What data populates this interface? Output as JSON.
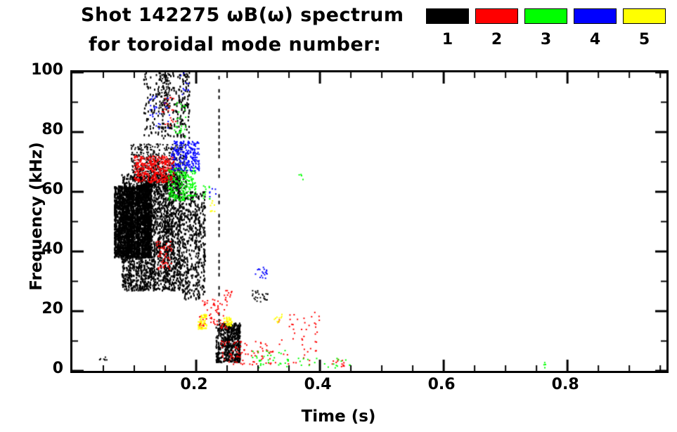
{
  "header": {
    "title_line1": "Shot 142275 ωB(ω) spectrum",
    "title_line2": "for toroidal mode number:"
  },
  "legend": {
    "swatch_colors": [
      "#000000",
      "#ff0000",
      "#00ff00",
      "#0000ff",
      "#ffff00"
    ],
    "mode_labels": [
      "1",
      "2",
      "3",
      "4",
      "5"
    ]
  },
  "chart_data": {
    "type": "scatter",
    "title": "Shot 142275 ωB(ω) spectrum for toroidal mode number",
    "xlabel": "Time (s)",
    "ylabel": "Frequency (kHz)",
    "xlim": [
      0,
      0.96
    ],
    "ylim": [
      0,
      100
    ],
    "x_major_ticks": [
      0.2,
      0.4,
      0.6,
      0.8
    ],
    "x_major_tick_labels": [
      "0.2",
      "0.4",
      "0.6",
      "0.8"
    ],
    "x_minor_step": 0.05,
    "y_major_ticks": [
      0,
      20,
      40,
      60,
      80,
      100
    ],
    "y_major_tick_labels": [
      "0",
      "20",
      "40",
      "60",
      "80",
      "100"
    ],
    "y_minor_step": 10,
    "grid": false,
    "legend_position": "top-right",
    "series": [
      {
        "name": "n=1",
        "color": "#000000",
        "clusters": [
          {
            "style": "columns",
            "t": [
              0.068,
              0.128
            ],
            "f": [
              38,
              62
            ],
            "n": 2600,
            "cols": 22,
            "size": 2
          },
          {
            "style": "columns",
            "t": [
              0.08,
              0.175
            ],
            "f": [
              27,
              66
            ],
            "n": 2100,
            "cols": 30,
            "size": 2
          },
          {
            "style": "speckle",
            "t": [
              0.095,
              0.185
            ],
            "f": [
              60,
              76
            ],
            "n": 650,
            "size": 2
          },
          {
            "style": "columns",
            "t": [
              0.115,
              0.19
            ],
            "f": [
              78,
              100
            ],
            "n": 300,
            "cols": 8,
            "size": 2
          },
          {
            "style": "columns",
            "t": [
              0.175,
              0.215
            ],
            "f": [
              24,
              60
            ],
            "n": 480,
            "cols": 9,
            "size": 2
          },
          {
            "style": "columns",
            "t": [
              0.232,
              0.272
            ],
            "f": [
              3,
              16
            ],
            "n": 520,
            "cols": 7,
            "size": 2
          },
          {
            "style": "vline",
            "t": [
              0.237,
              0.237
            ],
            "f": [
              2,
              100
            ],
            "n": 40,
            "size": 2
          },
          {
            "style": "speckle",
            "t": [
              0.044,
              0.056
            ],
            "f": [
              3,
              5
            ],
            "n": 8,
            "size": 2
          },
          {
            "style": "speckle",
            "t": [
              0.29,
              0.318
            ],
            "f": [
              23,
              27
            ],
            "n": 26,
            "size": 2
          },
          {
            "style": "speckle",
            "t": [
              0.14,
              0.158
            ],
            "f": [
              88,
              100
            ],
            "n": 70,
            "size": 2
          }
        ]
      },
      {
        "name": "n=2",
        "color": "#ff0000",
        "clusters": [
          {
            "style": "speckle",
            "t": [
              0.1,
              0.165
            ],
            "f": [
              63,
              72
            ],
            "n": 380,
            "size": 2
          },
          {
            "style": "speckle",
            "t": [
              0.135,
              0.162
            ],
            "f": [
              34,
              44
            ],
            "n": 55,
            "size": 2
          },
          {
            "style": "speckle",
            "t": [
              0.205,
              0.25
            ],
            "f": [
              14,
              24
            ],
            "n": 75,
            "size": 2
          },
          {
            "style": "speckle",
            "t": [
              0.24,
              0.33
            ],
            "f": [
              2,
              10
            ],
            "n": 90,
            "size": 2
          },
          {
            "style": "speckle",
            "t": [
              0.33,
              0.4
            ],
            "f": [
              2,
              20
            ],
            "n": 48,
            "size": 2
          },
          {
            "style": "speckle",
            "t": [
              0.145,
              0.168
            ],
            "f": [
              82,
              92
            ],
            "n": 22,
            "size": 2
          },
          {
            "style": "speckle",
            "t": [
              0.42,
              0.445
            ],
            "f": [
              1,
              4
            ],
            "n": 12,
            "size": 2
          },
          {
            "style": "speckle",
            "t": [
              0.245,
              0.258
            ],
            "f": [
              24,
              27
            ],
            "n": 10,
            "size": 2
          }
        ]
      },
      {
        "name": "n=3",
        "color": "#00ff00",
        "clusters": [
          {
            "style": "speckle",
            "t": [
              0.155,
              0.2
            ],
            "f": [
              57,
              68
            ],
            "n": 210,
            "size": 2
          },
          {
            "style": "speckle",
            "t": [
              0.165,
              0.185
            ],
            "f": [
              78,
              90
            ],
            "n": 26,
            "size": 2
          },
          {
            "style": "speckle",
            "t": [
              0.28,
              0.35
            ],
            "f": [
              1,
              7
            ],
            "n": 34,
            "size": 2
          },
          {
            "style": "speckle",
            "t": [
              0.36,
              0.45
            ],
            "f": [
              1,
              5
            ],
            "n": 20,
            "size": 2
          },
          {
            "style": "speckle",
            "t": [
              0.755,
              0.766
            ],
            "f": [
              1,
              3
            ],
            "n": 4,
            "size": 2
          },
          {
            "style": "speckle",
            "t": [
              0.365,
              0.376
            ],
            "f": [
              64,
              66
            ],
            "n": 4,
            "size": 2
          },
          {
            "style": "speckle",
            "t": [
              0.21,
              0.226
            ],
            "f": [
              57,
              62
            ],
            "n": 12,
            "size": 2
          }
        ]
      },
      {
        "name": "n=4",
        "color": "#0000ff",
        "clusters": [
          {
            "style": "speckle",
            "t": [
              0.16,
              0.205
            ],
            "f": [
              67,
              77
            ],
            "n": 250,
            "size": 2
          },
          {
            "style": "speckle",
            "t": [
              0.125,
              0.158
            ],
            "f": [
              80,
              92
            ],
            "n": 28,
            "size": 2
          },
          {
            "style": "speckle",
            "t": [
              0.295,
              0.315
            ],
            "f": [
              31,
              35
            ],
            "n": 18,
            "size": 2
          },
          {
            "style": "speckle",
            "t": [
              0.22,
              0.232
            ],
            "f": [
              58,
              62
            ],
            "n": 6,
            "size": 2
          },
          {
            "style": "speckle",
            "t": [
              0.175,
              0.192
            ],
            "f": [
              92,
              100
            ],
            "n": 10,
            "size": 2
          }
        ]
      },
      {
        "name": "n=5",
        "color": "#ffff00",
        "clusters": [
          {
            "style": "speckle",
            "t": [
              0.203,
              0.217
            ],
            "f": [
              14,
              19
            ],
            "n": 60,
            "size": 2
          },
          {
            "style": "speckle",
            "t": [
              0.245,
              0.259
            ],
            "f": [
              15,
              18
            ],
            "n": 40,
            "size": 2
          },
          {
            "style": "speckle",
            "t": [
              0.222,
              0.232
            ],
            "f": [
              53,
              57
            ],
            "n": 8,
            "size": 2
          },
          {
            "style": "speckle",
            "t": [
              0.325,
              0.342
            ],
            "f": [
              16,
              19
            ],
            "n": 10,
            "size": 2
          }
        ]
      }
    ]
  }
}
